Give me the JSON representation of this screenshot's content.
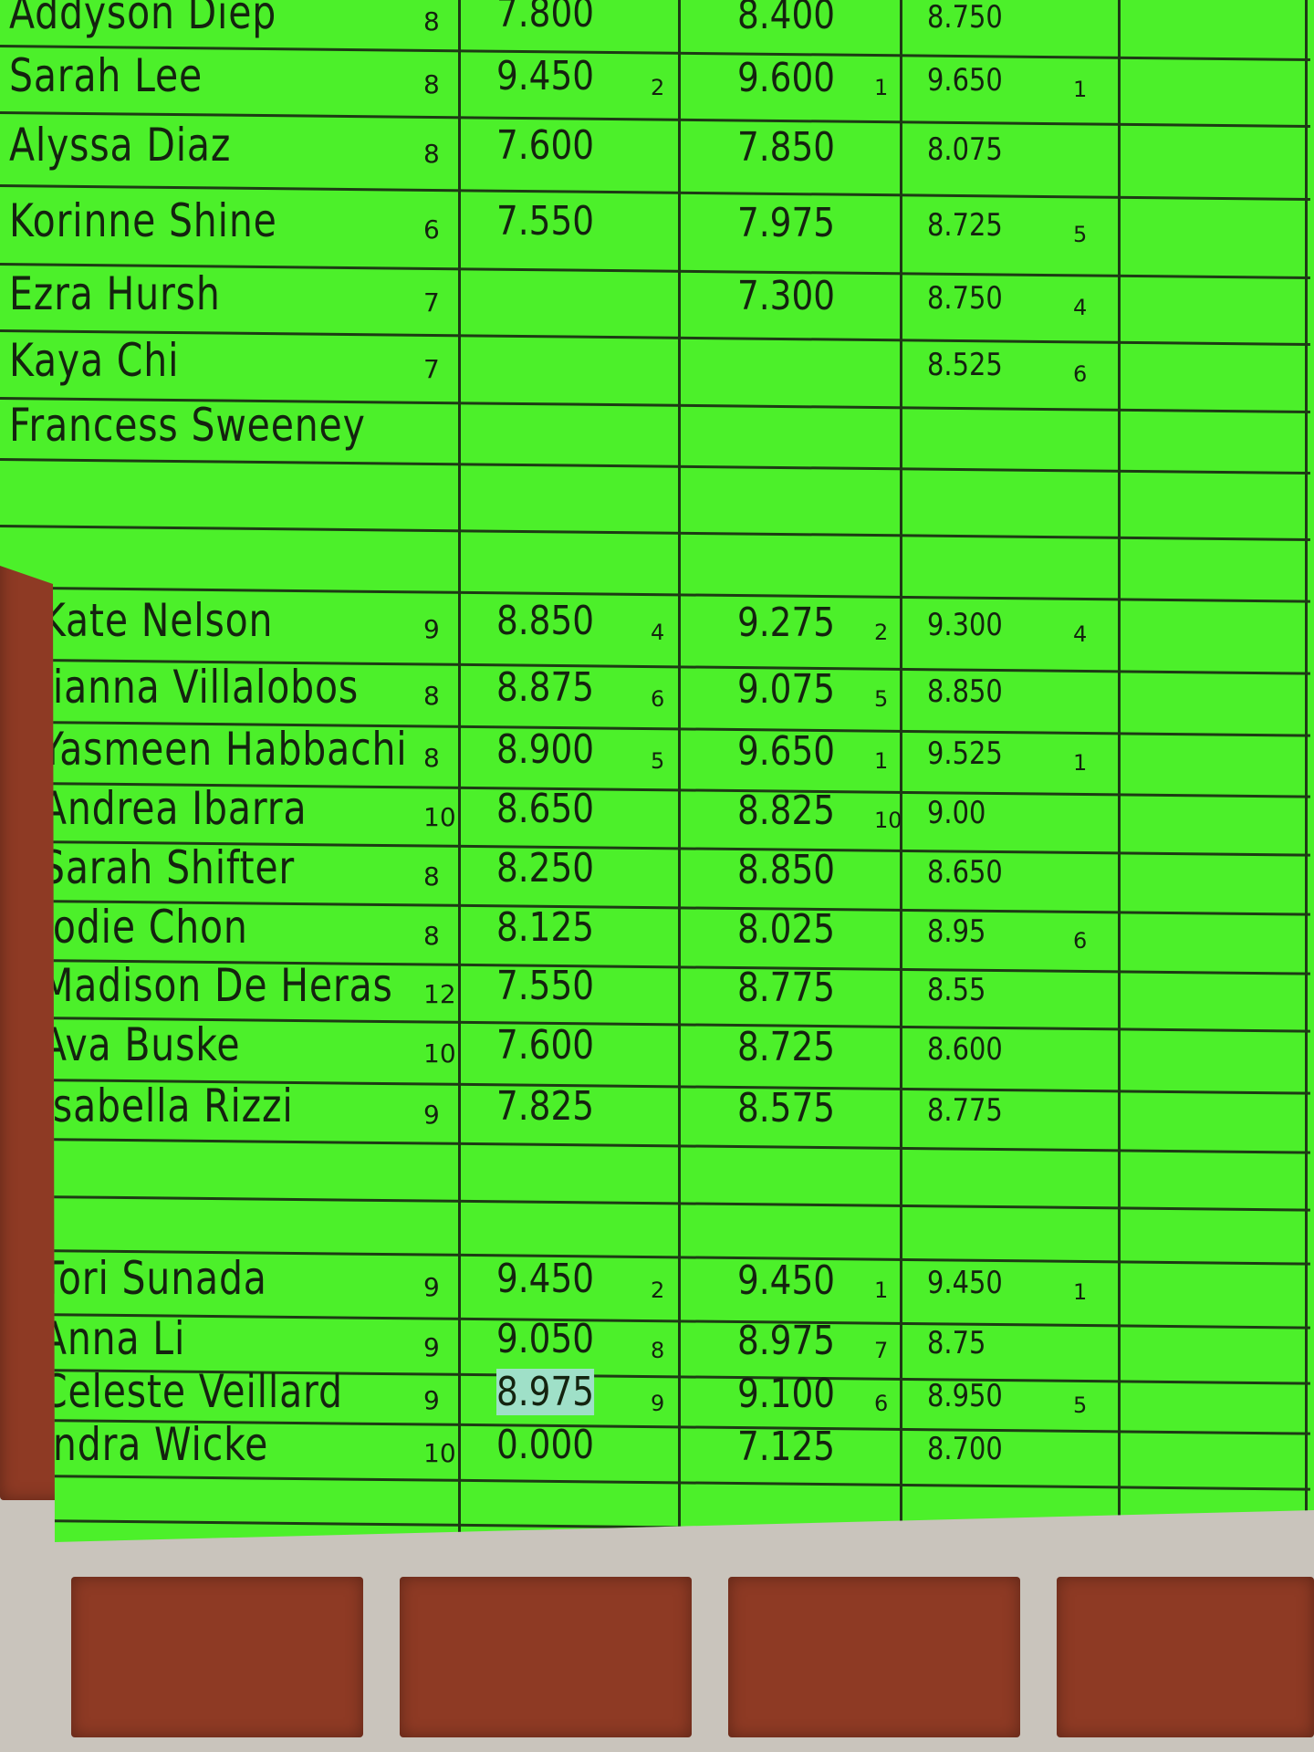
{
  "colors": {
    "paper": "#4cf02a",
    "ink": "#14230f",
    "brick": "#8e3a24",
    "mortar": "#c9c4bc",
    "highlight": "#9fe0c8"
  },
  "rows": [
    {
      "name": "Addyson Diep",
      "grade": "8",
      "s1": "7.800",
      "r1": "",
      "s2": "8.400",
      "r2": "",
      "s3": "8.750",
      "r3": ""
    },
    {
      "name": "Sarah Lee",
      "grade": "8",
      "s1": "9.450",
      "r1": "2",
      "s2": "9.600",
      "r2": "1",
      "s3": "9.650",
      "r3": "1"
    },
    {
      "name": "Alyssa Diaz",
      "grade": "8",
      "s1": "7.600",
      "r1": "",
      "s2": "7.850",
      "r2": "",
      "s3": "8.075",
      "r3": ""
    },
    {
      "name": "Korinne Shine",
      "grade": "6",
      "s1": "7.550",
      "r1": "",
      "s2": "7.975",
      "r2": "",
      "s3": "8.725",
      "r3": "5"
    },
    {
      "name": "Ezra Hursh",
      "grade": "7",
      "s1": "",
      "r1": "",
      "s2": "7.300",
      "r2": "",
      "s3": "8.750",
      "r3": "4"
    },
    {
      "name": "Kaya Chi",
      "grade": "7",
      "s1": "",
      "r1": "",
      "s2": "",
      "r2": "",
      "s3": "8.525",
      "r3": "6"
    },
    {
      "name": "Francess Sweeney",
      "grade": "",
      "s1": "",
      "r1": "",
      "s2": "",
      "r2": "",
      "s3": "",
      "r3": ""
    },
    {
      "name": "",
      "grade": "",
      "s1": "",
      "r1": "",
      "s2": "",
      "r2": "",
      "s3": "",
      "r3": ""
    },
    {
      "name": "",
      "grade": "",
      "s1": "",
      "r1": "",
      "s2": "",
      "r2": "",
      "s3": "",
      "r3": ""
    },
    {
      "name": "Kate Nelson",
      "grade": "9",
      "s1": "8.850",
      "r1": "4",
      "s2": "9.275",
      "r2": "2",
      "s3": "9.300",
      "r3": "4"
    },
    {
      "name": "Jianna Villalobos",
      "grade": "8",
      "s1": "8.875",
      "r1": "6",
      "s2": "9.075",
      "r2": "5",
      "s3": "8.850",
      "r3": ""
    },
    {
      "name": "Yasmeen Habbachi",
      "grade": "8",
      "s1": "8.900",
      "r1": "5",
      "s2": "9.650",
      "r2": "1",
      "s3": "9.525",
      "r3": "1"
    },
    {
      "name": "Andrea Ibarra",
      "grade": "10",
      "s1": "8.650",
      "r1": "",
      "s2": "8.825",
      "r2": "10",
      "s3": "9.00",
      "r3": ""
    },
    {
      "name": "Sarah Shifter",
      "grade": "8",
      "s1": "8.250",
      "r1": "",
      "s2": "8.850",
      "r2": "",
      "s3": "8.650",
      "r3": ""
    },
    {
      "name": "Jodie Chon",
      "grade": "8",
      "s1": "8.125",
      "r1": "",
      "s2": "8.025",
      "r2": "",
      "s3": "8.95",
      "r3": "6"
    },
    {
      "name": "Madison De Heras",
      "grade": "12",
      "s1": "7.550",
      "r1": "",
      "s2": "8.775",
      "r2": "",
      "s3": "8.55",
      "r3": ""
    },
    {
      "name": "Ava Buske",
      "grade": "10",
      "s1": "7.600",
      "r1": "",
      "s2": "8.725",
      "r2": "",
      "s3": "8.600",
      "r3": ""
    },
    {
      "name": "Isabella Rizzi",
      "grade": "9",
      "s1": "7.825",
      "r1": "",
      "s2": "8.575",
      "r2": "",
      "s3": "8.775",
      "r3": ""
    },
    {
      "name": "",
      "grade": "",
      "s1": "",
      "r1": "",
      "s2": "",
      "r2": "",
      "s3": "",
      "r3": ""
    },
    {
      "name": "",
      "grade": "",
      "s1": "",
      "r1": "",
      "s2": "",
      "r2": "",
      "s3": "",
      "r3": ""
    },
    {
      "name": "Tori Sunada",
      "grade": "9",
      "s1": "9.450",
      "r1": "2",
      "s2": "9.450",
      "r2": "1",
      "s3": "9.450",
      "r3": "1"
    },
    {
      "name": "Anna Li",
      "grade": "9",
      "s1": "9.050",
      "r1": "8",
      "s2": "8.975",
      "r2": "7",
      "s3": "8.75",
      "r3": ""
    },
    {
      "name": "Celeste Veillard",
      "grade": "9",
      "s1": "8.975",
      "r1": "9",
      "s2": "9.100",
      "r2": "6",
      "s3": "8.950",
      "r3": "5",
      "s1_highlighted": true
    },
    {
      "name": "Indra Wicke",
      "grade": "10",
      "s1": "0.000",
      "r1": "",
      "s2": "7.125",
      "r2": "",
      "s3": "8.700",
      "r3": ""
    },
    {
      "name": "",
      "grade": "",
      "s1": "",
      "r1": "",
      "s2": "",
      "r2": "",
      "s3": "",
      "r3": ""
    }
  ]
}
